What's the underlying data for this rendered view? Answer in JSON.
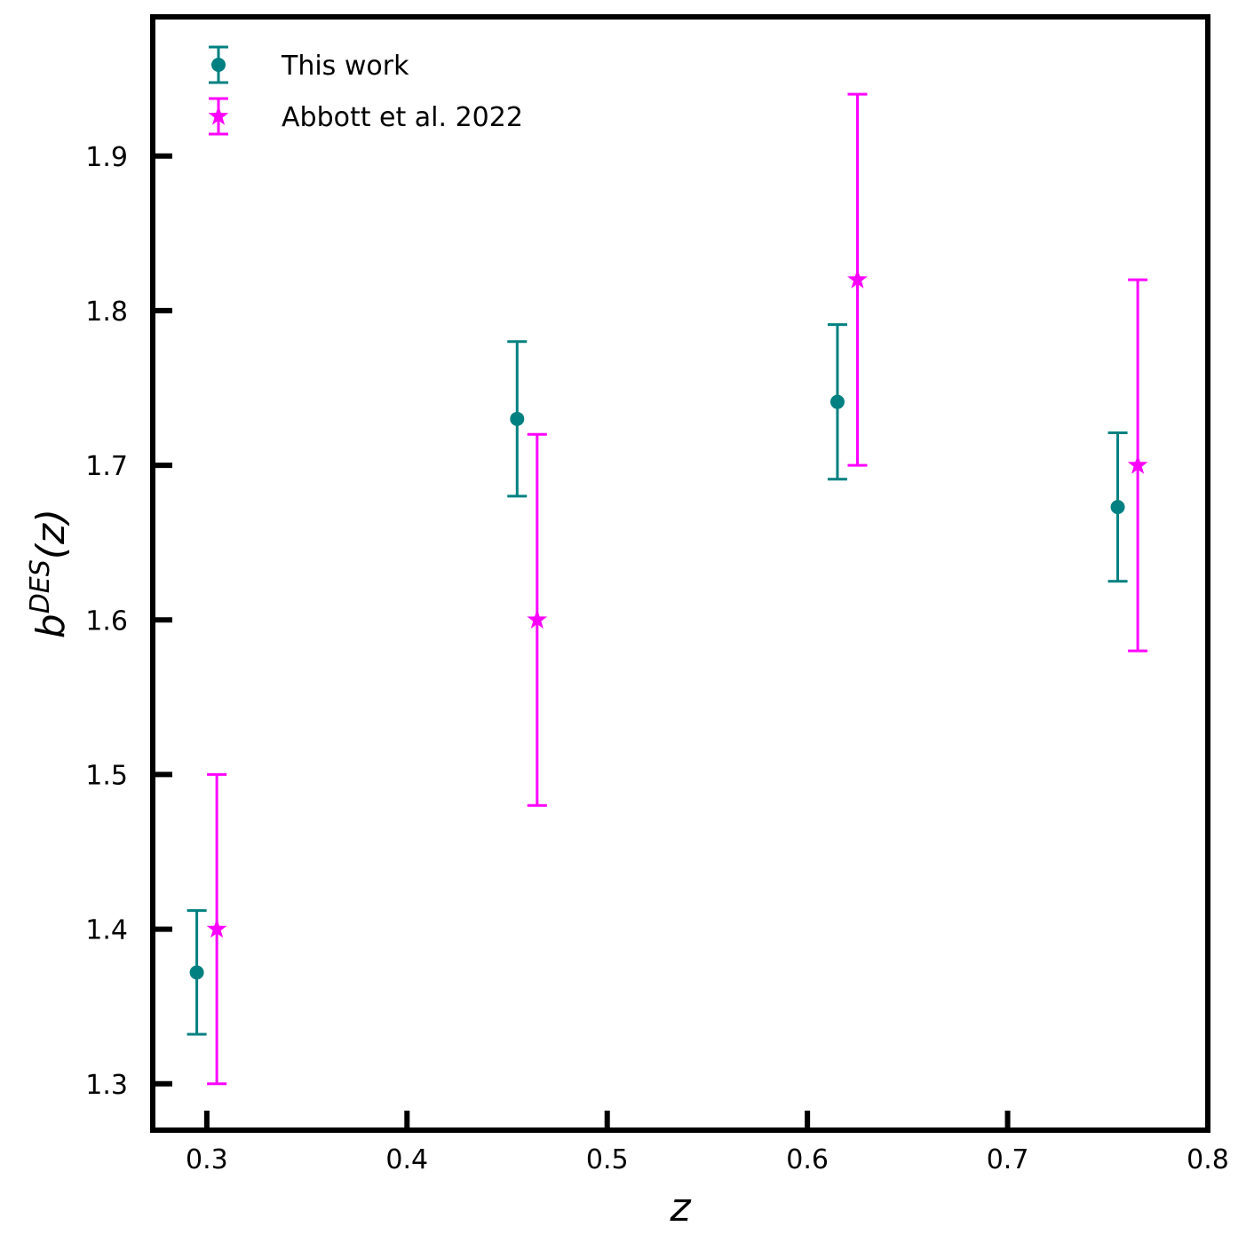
{
  "chart_data": {
    "type": "scatter",
    "xlabel": "z",
    "ylabel": {
      "base": "b",
      "superscript": "DES",
      "argument": "(z)"
    },
    "xlim": [
      0.273,
      0.8
    ],
    "ylim": [
      1.27,
      1.99
    ],
    "xticks": [
      0.3,
      0.4,
      0.5,
      0.6,
      0.7,
      0.8
    ],
    "yticks": [
      1.3,
      1.4,
      1.5,
      1.6,
      1.7,
      1.8,
      1.9
    ],
    "xtick_labels": [
      "0.3",
      "0.4",
      "0.5",
      "0.6",
      "0.7",
      "0.8"
    ],
    "ytick_labels": [
      "1.3",
      "1.4",
      "1.5",
      "1.6",
      "1.7",
      "1.8",
      "1.9"
    ],
    "grid": false,
    "legend_position": "top-left",
    "series": [
      {
        "name": "This work",
        "marker": "circle",
        "color": "#008080",
        "points": [
          {
            "x": 0.295,
            "y": 1.372,
            "err": 0.04
          },
          {
            "x": 0.455,
            "y": 1.73,
            "err": 0.05
          },
          {
            "x": 0.615,
            "y": 1.741,
            "err": 0.05
          },
          {
            "x": 0.755,
            "y": 1.673,
            "err": 0.048
          }
        ]
      },
      {
        "name": "Abbott et al. 2022",
        "marker": "star",
        "color": "#ff00ff",
        "points": [
          {
            "x": 0.305,
            "y": 1.4,
            "err": 0.1
          },
          {
            "x": 0.465,
            "y": 1.6,
            "err": 0.12
          },
          {
            "x": 0.625,
            "y": 1.82,
            "err": 0.12
          },
          {
            "x": 0.765,
            "y": 1.7,
            "err": 0.12
          }
        ]
      }
    ]
  }
}
